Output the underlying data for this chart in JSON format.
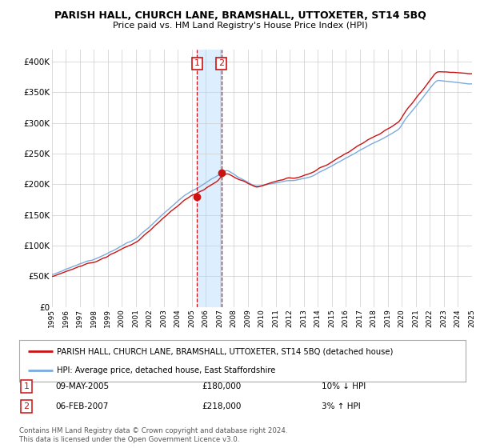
{
  "title": "PARISH HALL, CHURCH LANE, BRAMSHALL, UTTOXETER, ST14 5BQ",
  "subtitle": "Price paid vs. HM Land Registry's House Price Index (HPI)",
  "sale1": {
    "date": "09-MAY-2005",
    "price": 180000,
    "label": "1",
    "year": 2005.37,
    "hpi_pct": "10% ↓ HPI"
  },
  "sale2": {
    "date": "06-FEB-2007",
    "price": 218000,
    "label": "2",
    "year": 2007.1,
    "hpi_pct": "3% ↑ HPI"
  },
  "hpi_line_color": "#7aabe0",
  "price_line_color": "#cc1111",
  "vline_color": "#cc1111",
  "shade_color": "#ddeeff",
  "marker_color": "#cc1111",
  "legend1": "PARISH HALL, CHURCH LANE, BRAMSHALL, UTTOXETER, ST14 5BQ (detached house)",
  "legend2": "HPI: Average price, detached house, East Staffordshire",
  "footer1": "Contains HM Land Registry data © Crown copyright and database right 2024.",
  "footer2": "This data is licensed under the Open Government Licence v3.0.",
  "ylim_max": 420000,
  "yticks": [
    0,
    50000,
    100000,
    150000,
    200000,
    250000,
    300000,
    350000,
    400000
  ],
  "ytick_labels": [
    "£0",
    "£50K",
    "£100K",
    "£150K",
    "£200K",
    "£250K",
    "£300K",
    "£350K",
    "£400K"
  ],
  "background_color": "#ffffff",
  "grid_color": "#cccccc"
}
